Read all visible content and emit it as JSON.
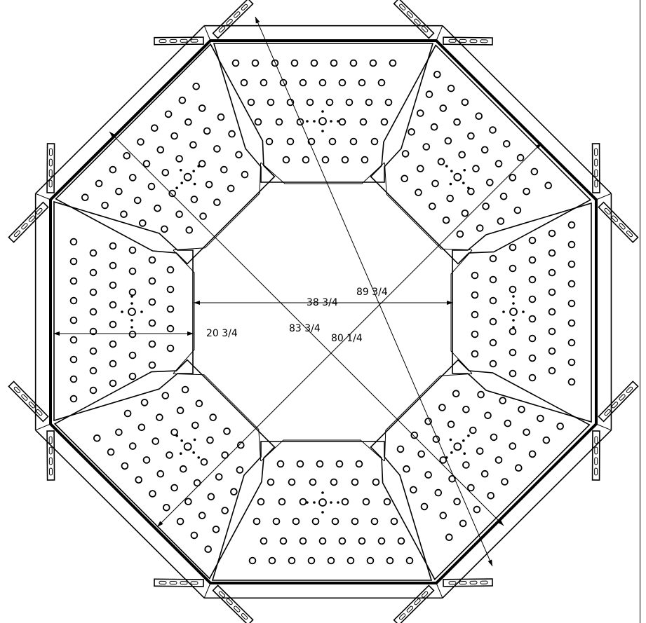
{
  "dimensions": {
    "flat_to_flat_inner": "38 3/4",
    "panel_depth": "20 3/4",
    "overall_width": "89 3/4",
    "diagonal_a": "83 3/4",
    "diagonal_b": "80 1/4"
  }
}
